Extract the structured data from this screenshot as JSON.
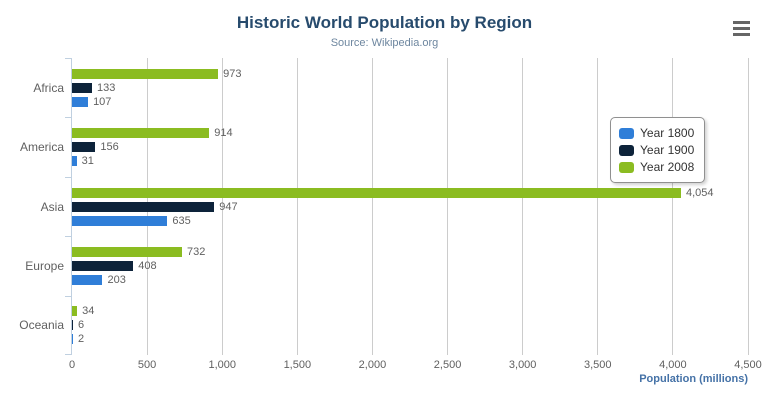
{
  "header": {
    "title": "Historic World Population by Region",
    "subtitle": "Source: Wikipedia.org"
  },
  "x_axis": {
    "title": "Population (millions)",
    "tick_labels": [
      "0",
      "500",
      "1,000",
      "1,500",
      "2,000",
      "2,500",
      "3,000",
      "3,500",
      "4,000",
      "4,500"
    ],
    "tick_interval": 500,
    "max": 4500
  },
  "chart_data": {
    "type": "bar",
    "orientation": "horizontal",
    "title": "Historic World Population by Region",
    "subtitle": "Source: Wikipedia.org",
    "categories": [
      "Africa",
      "America",
      "Asia",
      "Europe",
      "Oceania"
    ],
    "series": [
      {
        "name": "Year 1800",
        "color": "#2f7ed8",
        "values": [
          107,
          31,
          635,
          203,
          2
        ],
        "labels": [
          "107",
          "31",
          "635",
          "203",
          "2"
        ]
      },
      {
        "name": "Year 1900",
        "color": "#0d233a",
        "values": [
          133,
          156,
          947,
          408,
          6
        ],
        "labels": [
          "133",
          "156",
          "947",
          "408",
          "6"
        ]
      },
      {
        "name": "Year 2008",
        "color": "#8bbc21",
        "values": [
          973,
          914,
          4054,
          732,
          34
        ],
        "labels": [
          "973",
          "914",
          "4,054",
          "732",
          "34"
        ]
      }
    ],
    "xlabel": "Population (millions)",
    "ylabel": "",
    "xlim": [
      0,
      4500
    ],
    "grid": true,
    "legend_position": "right-overlay",
    "bar_order_top_to_bottom": [
      "Year 2008",
      "Year 1900",
      "Year 1800"
    ]
  },
  "colors": {
    "title": "#274b6d",
    "subtitle": "#6d869f",
    "axis_label": "#606060",
    "data_label": "#606060",
    "axis_title": "#4572a7",
    "gridline": "#cccccc",
    "axis_line": "#c0d0e0",
    "legend_border": "#909090",
    "legend_text": "#333333",
    "menu_icon": "#666666",
    "background": "#ffffff"
  }
}
